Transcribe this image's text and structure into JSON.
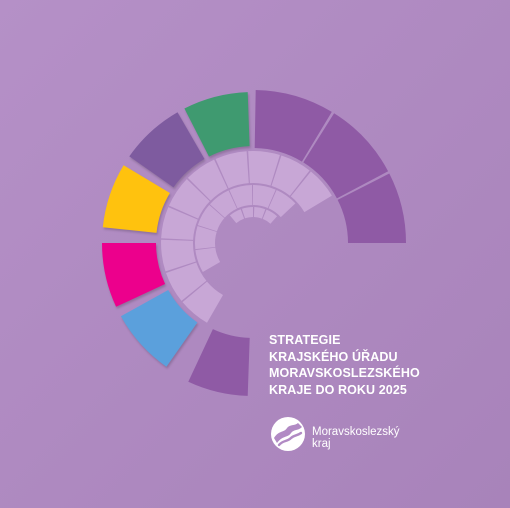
{
  "title": {
    "lines": [
      "STRATEGIE",
      "KRAJSKÉHO ÚŘADU",
      "MORAVSKOSLEZSKÉHO",
      "KRAJE DO ROKU 2025"
    ]
  },
  "logo": {
    "icon": "moravskoslezsky-kraj-logo-icon",
    "line1": "Moravskoslezský",
    "line2": "kraj"
  },
  "colors": {
    "background": "#b18ac4",
    "dark_purple": "#8f5aa5",
    "green": "#3f9a70",
    "violet": "#7e5b9f",
    "yellow": "#ffc20e",
    "magenta": "#ec008c",
    "blue": "#5ba0dc",
    "light_tile": "#c8a7d6",
    "white": "#ffffff"
  }
}
